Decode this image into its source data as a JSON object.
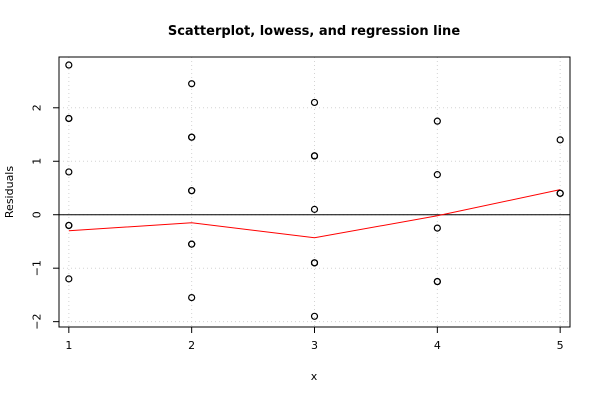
{
  "chart_data": {
    "type": "scatter",
    "title": "Scatterplot, lowess, and regression line",
    "xlabel": "x",
    "ylabel": "Residuals",
    "xlim": [
      0.92,
      5.08
    ],
    "ylim": [
      -2.1,
      2.95
    ],
    "x_ticks": [
      1,
      2,
      3,
      4,
      5
    ],
    "y_ticks": [
      -2,
      -1,
      0,
      1,
      2
    ],
    "grid": true,
    "points": [
      {
        "x": 1,
        "y": 2.8
      },
      {
        "x": 1,
        "y": 1.8
      },
      {
        "x": 1,
        "y": 1.8
      },
      {
        "x": 1,
        "y": 0.8
      },
      {
        "x": 1,
        "y": -0.2
      },
      {
        "x": 1,
        "y": -0.2
      },
      {
        "x": 1,
        "y": -1.2
      },
      {
        "x": 2,
        "y": 2.45
      },
      {
        "x": 2,
        "y": 1.45
      },
      {
        "x": 2,
        "y": 1.45
      },
      {
        "x": 2,
        "y": 0.45
      },
      {
        "x": 2,
        "y": 0.45
      },
      {
        "x": 2,
        "y": -0.55
      },
      {
        "x": 2,
        "y": -0.55
      },
      {
        "x": 2,
        "y": -1.55
      },
      {
        "x": 3,
        "y": 2.1
      },
      {
        "x": 3,
        "y": 1.1
      },
      {
        "x": 3,
        "y": 1.1
      },
      {
        "x": 3,
        "y": 0.1
      },
      {
        "x": 3,
        "y": -0.9
      },
      {
        "x": 3,
        "y": -0.9
      },
      {
        "x": 3,
        "y": -1.9
      },
      {
        "x": 4,
        "y": 1.75
      },
      {
        "x": 4,
        "y": 0.75
      },
      {
        "x": 4,
        "y": -0.25
      },
      {
        "x": 4,
        "y": -1.25
      },
      {
        "x": 4,
        "y": -1.25
      },
      {
        "x": 5,
        "y": 1.4
      },
      {
        "x": 5,
        "y": 0.4
      },
      {
        "x": 5,
        "y": 0.4
      }
    ],
    "lowess": [
      {
        "x": 1,
        "y": -0.3
      },
      {
        "x": 2,
        "y": -0.15
      },
      {
        "x": 3,
        "y": -0.43
      },
      {
        "x": 4,
        "y": -0.02
      },
      {
        "x": 5,
        "y": 0.47
      }
    ],
    "regression_line": {
      "y": 0
    },
    "colors": {
      "points": "#000000",
      "lowess": "#ff0000",
      "regression": "#000000",
      "grid": "#d3d3d3"
    }
  }
}
